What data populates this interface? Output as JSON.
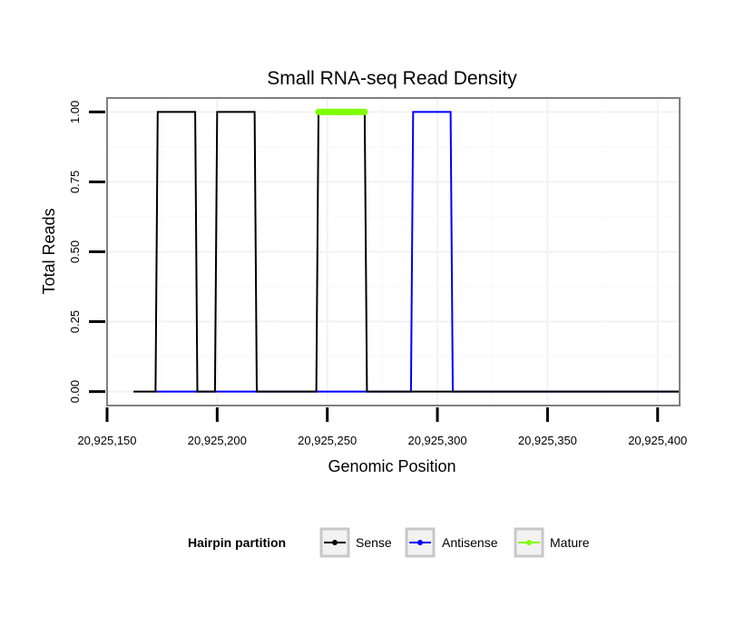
{
  "chart_data": {
    "type": "line",
    "title": "Small RNA-seq Read Density",
    "xlabel": "Genomic Position",
    "ylabel": "Total Reads",
    "xlim": [
      20925150,
      20925410
    ],
    "ylim": [
      -0.05,
      1.05
    ],
    "x_ticks": [
      20925150,
      20925200,
      20925250,
      20925300,
      20925350,
      20925400
    ],
    "x_tick_labels": [
      "20,925,150",
      "20,925,200",
      "20,925,250",
      "20,925,300",
      "20,925,350",
      "20,925,400"
    ],
    "y_ticks": [
      0,
      0.25,
      0.5,
      0.75,
      1
    ],
    "y_tick_labels": [
      "0.00",
      "0.25",
      "0.50",
      "0.75",
      "1.00"
    ],
    "grid": true,
    "legend": {
      "position": "bottom",
      "title": "Hairpin partition"
    },
    "series": [
      {
        "name": "Sense",
        "color": "#000000",
        "x": [
          20925162,
          20925172,
          20925173,
          20925190,
          20925191,
          20925199,
          20925200,
          20925217,
          20925218,
          20925245,
          20925246,
          20925267,
          20925268,
          20925410
        ],
        "y": [
          0,
          0,
          1,
          1,
          0,
          0,
          1,
          1,
          0,
          0,
          1,
          1,
          0,
          0
        ]
      },
      {
        "name": "Antisense",
        "color": "#0000ff",
        "x": [
          20925172,
          20925288,
          20925289,
          20925306,
          20925307,
          20925410
        ],
        "y": [
          0,
          0,
          1,
          1,
          0,
          0
        ]
      },
      {
        "name": "Mature",
        "color": "#7fff00",
        "x": [
          20925246,
          20925267
        ],
        "y": [
          1,
          1
        ]
      }
    ]
  }
}
